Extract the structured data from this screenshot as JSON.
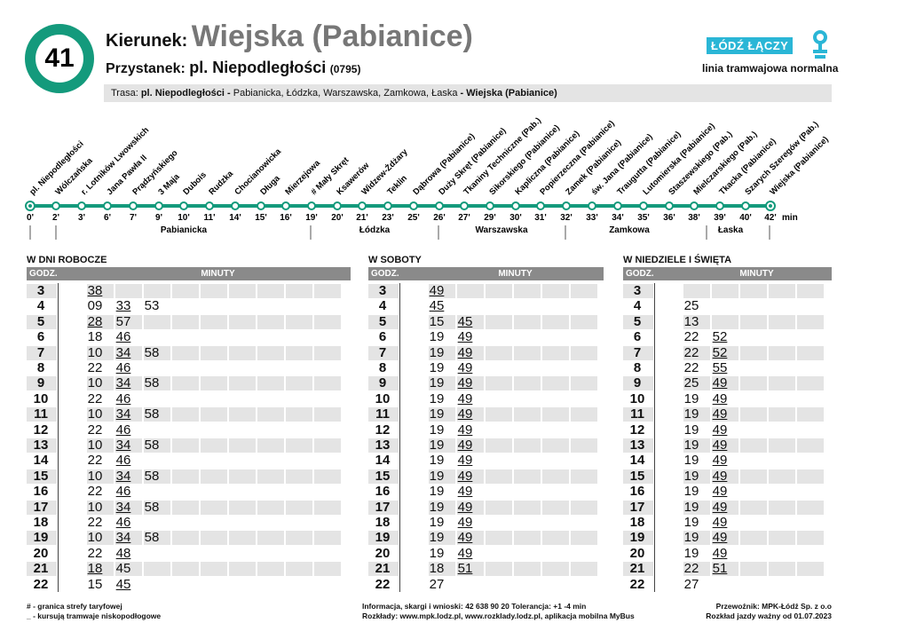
{
  "line_number": "41",
  "direction_label": "Kierunek:",
  "direction": "Wiejska (Pabianice)",
  "stop_label": "Przystanek:",
  "stop": "pl. Niepodległości",
  "stop_code": "(0795)",
  "brand": "ŁÓDŹ ŁĄCZY",
  "line_type": "linia tramwajowa normalna",
  "route_text": {
    "label": "Trasa:",
    "start": "pl. Niepodległości -",
    "middle": "Pabianicka, Łódzka, Warszawska, Zamkowa, Łaska",
    "end": "- Wiejska (Pabianice)"
  },
  "stops": [
    {
      "name": "pl. Niepodległości",
      "time": "0'"
    },
    {
      "name": "Wólczańska",
      "time": "2'"
    },
    {
      "name": "r. Lotników Lwowskich",
      "time": "3'"
    },
    {
      "name": "Jana Pawła II",
      "time": "6'"
    },
    {
      "name": "Prądzyńskiego",
      "time": "7'"
    },
    {
      "name": "3 Maja",
      "time": "9'"
    },
    {
      "name": "Dubois",
      "time": "10'"
    },
    {
      "name": "Rudzka",
      "time": "11'"
    },
    {
      "name": "Chocianowicka",
      "time": "14'"
    },
    {
      "name": "Długa",
      "time": "15'"
    },
    {
      "name": "Mierzejowa",
      "time": "16'"
    },
    {
      "name": "# Mały Skręt",
      "time": "19'"
    },
    {
      "name": "Ksawerów",
      "time": "20'"
    },
    {
      "name": "Widzew-Żdżary",
      "time": "21'"
    },
    {
      "name": "Teklin",
      "time": "23'"
    },
    {
      "name": "Dąbrowa (Pabianice)",
      "time": "25'"
    },
    {
      "name": "Duży Skręt (Pabianice)",
      "time": "26'"
    },
    {
      "name": "Tkaniny Techniczne (Pab.)",
      "time": "27'"
    },
    {
      "name": "Sikorskiego (Pabianice)",
      "time": "29'"
    },
    {
      "name": "Kapliczna (Pabianice)",
      "time": "30'"
    },
    {
      "name": "Popierzeczna (Pabianice)",
      "time": "31'"
    },
    {
      "name": "Zamek (Pabianice)",
      "time": "32'"
    },
    {
      "name": "św. Jana (Pabianice)",
      "time": "33'"
    },
    {
      "name": "Traugutta (Pabianice)",
      "time": "34'"
    },
    {
      "name": "Lutomierska (Pabianice)",
      "time": "35'"
    },
    {
      "name": "Staszewskiego (Pab.)",
      "time": "36'"
    },
    {
      "name": "Mielczarskiego (Pab.)",
      "time": "38'"
    },
    {
      "name": "Tkacka (Pabianice)",
      "time": "39'"
    },
    {
      "name": "Szarych Szeregów (Pab.)",
      "time": "40'"
    },
    {
      "name": "Wiejska (Pabianice)",
      "time": "42'"
    }
  ],
  "min_label": "min",
  "street_labels": [
    "Pabianicka",
    "Łódzka",
    "Warszawska",
    "Zamkowa",
    "Łaska"
  ],
  "tables": [
    {
      "title": "W DNI ROBOCZE",
      "godz": "GODZ.",
      "minuty": "MINUTY",
      "rows": [
        {
          "h": "3",
          "m": [
            {
              "v": "38",
              "u": true
            }
          ]
        },
        {
          "h": "4",
          "m": [
            {
              "v": "09",
              "u": false
            },
            {
              "v": "33",
              "u": true
            },
            {
              "v": "53",
              "u": false
            }
          ]
        },
        {
          "h": "5",
          "m": [
            {
              "v": "28",
              "u": true
            },
            {
              "v": "57",
              "u": false
            }
          ]
        },
        {
          "h": "6",
          "m": [
            {
              "v": "18",
              "u": false
            },
            {
              "v": "46",
              "u": true
            }
          ]
        },
        {
          "h": "7",
          "m": [
            {
              "v": "10",
              "u": false
            },
            {
              "v": "34",
              "u": true
            },
            {
              "v": "58",
              "u": false
            }
          ]
        },
        {
          "h": "8",
          "m": [
            {
              "v": "22",
              "u": false
            },
            {
              "v": "46",
              "u": true
            }
          ]
        },
        {
          "h": "9",
          "m": [
            {
              "v": "10",
              "u": false
            },
            {
              "v": "34",
              "u": true
            },
            {
              "v": "58",
              "u": false
            }
          ]
        },
        {
          "h": "10",
          "m": [
            {
              "v": "22",
              "u": false
            },
            {
              "v": "46",
              "u": true
            }
          ]
        },
        {
          "h": "11",
          "m": [
            {
              "v": "10",
              "u": false
            },
            {
              "v": "34",
              "u": true
            },
            {
              "v": "58",
              "u": false
            }
          ]
        },
        {
          "h": "12",
          "m": [
            {
              "v": "22",
              "u": false
            },
            {
              "v": "46",
              "u": true
            }
          ]
        },
        {
          "h": "13",
          "m": [
            {
              "v": "10",
              "u": false
            },
            {
              "v": "34",
              "u": true
            },
            {
              "v": "58",
              "u": false
            }
          ]
        },
        {
          "h": "14",
          "m": [
            {
              "v": "22",
              "u": false
            },
            {
              "v": "46",
              "u": true
            }
          ]
        },
        {
          "h": "15",
          "m": [
            {
              "v": "10",
              "u": false
            },
            {
              "v": "34",
              "u": true
            },
            {
              "v": "58",
              "u": false
            }
          ]
        },
        {
          "h": "16",
          "m": [
            {
              "v": "22",
              "u": false
            },
            {
              "v": "46",
              "u": true
            }
          ]
        },
        {
          "h": "17",
          "m": [
            {
              "v": "10",
              "u": false
            },
            {
              "v": "34",
              "u": true
            },
            {
              "v": "58",
              "u": false
            }
          ]
        },
        {
          "h": "18",
          "m": [
            {
              "v": "22",
              "u": false
            },
            {
              "v": "46",
              "u": true
            }
          ]
        },
        {
          "h": "19",
          "m": [
            {
              "v": "10",
              "u": false
            },
            {
              "v": "34",
              "u": true
            },
            {
              "v": "58",
              "u": false
            }
          ]
        },
        {
          "h": "20",
          "m": [
            {
              "v": "22",
              "u": false
            },
            {
              "v": "48",
              "u": true
            }
          ]
        },
        {
          "h": "21",
          "m": [
            {
              "v": "18",
              "u": true
            },
            {
              "v": "45",
              "u": false
            }
          ]
        },
        {
          "h": "22",
          "m": [
            {
              "v": "15",
              "u": false
            },
            {
              "v": "45",
              "u": true
            }
          ]
        }
      ]
    },
    {
      "title": "W SOBOTY",
      "godz": "GODZ.",
      "minuty": "MINUTY",
      "rows": [
        {
          "h": "3",
          "m": [
            {
              "v": "49",
              "u": true
            }
          ]
        },
        {
          "h": "4",
          "m": [
            {
              "v": "45",
              "u": true
            }
          ]
        },
        {
          "h": "5",
          "m": [
            {
              "v": "15",
              "u": false
            },
            {
              "v": "45",
              "u": true
            }
          ]
        },
        {
          "h": "6",
          "m": [
            {
              "v": "19",
              "u": false
            },
            {
              "v": "49",
              "u": true
            }
          ]
        },
        {
          "h": "7",
          "m": [
            {
              "v": "19",
              "u": false
            },
            {
              "v": "49",
              "u": true
            }
          ]
        },
        {
          "h": "8",
          "m": [
            {
              "v": "19",
              "u": false
            },
            {
              "v": "49",
              "u": true
            }
          ]
        },
        {
          "h": "9",
          "m": [
            {
              "v": "19",
              "u": false
            },
            {
              "v": "49",
              "u": true
            }
          ]
        },
        {
          "h": "10",
          "m": [
            {
              "v": "19",
              "u": false
            },
            {
              "v": "49",
              "u": true
            }
          ]
        },
        {
          "h": "11",
          "m": [
            {
              "v": "19",
              "u": false
            },
            {
              "v": "49",
              "u": true
            }
          ]
        },
        {
          "h": "12",
          "m": [
            {
              "v": "19",
              "u": false
            },
            {
              "v": "49",
              "u": true
            }
          ]
        },
        {
          "h": "13",
          "m": [
            {
              "v": "19",
              "u": false
            },
            {
              "v": "49",
              "u": true
            }
          ]
        },
        {
          "h": "14",
          "m": [
            {
              "v": "19",
              "u": false
            },
            {
              "v": "49",
              "u": true
            }
          ]
        },
        {
          "h": "15",
          "m": [
            {
              "v": "19",
              "u": false
            },
            {
              "v": "49",
              "u": true
            }
          ]
        },
        {
          "h": "16",
          "m": [
            {
              "v": "19",
              "u": false
            },
            {
              "v": "49",
              "u": true
            }
          ]
        },
        {
          "h": "17",
          "m": [
            {
              "v": "19",
              "u": false
            },
            {
              "v": "49",
              "u": true
            }
          ]
        },
        {
          "h": "18",
          "m": [
            {
              "v": "19",
              "u": false
            },
            {
              "v": "49",
              "u": true
            }
          ]
        },
        {
          "h": "19",
          "m": [
            {
              "v": "19",
              "u": false
            },
            {
              "v": "49",
              "u": true
            }
          ]
        },
        {
          "h": "20",
          "m": [
            {
              "v": "19",
              "u": false
            },
            {
              "v": "49",
              "u": true
            }
          ]
        },
        {
          "h": "21",
          "m": [
            {
              "v": "18",
              "u": false
            },
            {
              "v": "51",
              "u": true
            }
          ]
        },
        {
          "h": "22",
          "m": [
            {
              "v": "27",
              "u": false
            }
          ]
        }
      ]
    },
    {
      "title": "W NIEDZIELE I ŚWIĘTA",
      "godz": "GODZ.",
      "minuty": "MINUTY",
      "rows": [
        {
          "h": "3",
          "m": []
        },
        {
          "h": "4",
          "m": [
            {
              "v": "25",
              "u": false
            }
          ]
        },
        {
          "h": "5",
          "m": [
            {
              "v": "13",
              "u": false
            }
          ]
        },
        {
          "h": "6",
          "m": [
            {
              "v": "22",
              "u": false
            },
            {
              "v": "52",
              "u": true
            }
          ]
        },
        {
          "h": "7",
          "m": [
            {
              "v": "22",
              "u": false
            },
            {
              "v": "52",
              "u": true
            }
          ]
        },
        {
          "h": "8",
          "m": [
            {
              "v": "22",
              "u": false
            },
            {
              "v": "55",
              "u": true
            }
          ]
        },
        {
          "h": "9",
          "m": [
            {
              "v": "25",
              "u": false
            },
            {
              "v": "49",
              "u": true
            }
          ]
        },
        {
          "h": "10",
          "m": [
            {
              "v": "19",
              "u": false
            },
            {
              "v": "49",
              "u": true
            }
          ]
        },
        {
          "h": "11",
          "m": [
            {
              "v": "19",
              "u": false
            },
            {
              "v": "49",
              "u": true
            }
          ]
        },
        {
          "h": "12",
          "m": [
            {
              "v": "19",
              "u": false
            },
            {
              "v": "49",
              "u": true
            }
          ]
        },
        {
          "h": "13",
          "m": [
            {
              "v": "19",
              "u": false
            },
            {
              "v": "49",
              "u": true
            }
          ]
        },
        {
          "h": "14",
          "m": [
            {
              "v": "19",
              "u": false
            },
            {
              "v": "49",
              "u": true
            }
          ]
        },
        {
          "h": "15",
          "m": [
            {
              "v": "19",
              "u": false
            },
            {
              "v": "49",
              "u": true
            }
          ]
        },
        {
          "h": "16",
          "m": [
            {
              "v": "19",
              "u": false
            },
            {
              "v": "49",
              "u": true
            }
          ]
        },
        {
          "h": "17",
          "m": [
            {
              "v": "19",
              "u": false
            },
            {
              "v": "49",
              "u": true
            }
          ]
        },
        {
          "h": "18",
          "m": [
            {
              "v": "19",
              "u": false
            },
            {
              "v": "49",
              "u": true
            }
          ]
        },
        {
          "h": "19",
          "m": [
            {
              "v": "19",
              "u": false
            },
            {
              "v": "49",
              "u": true
            }
          ]
        },
        {
          "h": "20",
          "m": [
            {
              "v": "19",
              "u": false
            },
            {
              "v": "49",
              "u": true
            }
          ]
        },
        {
          "h": "21",
          "m": [
            {
              "v": "22",
              "u": false
            },
            {
              "v": "51",
              "u": true
            }
          ]
        },
        {
          "h": "22",
          "m": [
            {
              "v": "27",
              "u": false
            }
          ]
        }
      ]
    }
  ],
  "footer": {
    "legend1": "# - granica strefy taryfowej",
    "legend2": "_ - kursują tramwaje niskopodłogowe",
    "info1": "Informacja, skargi i wnioski: 42 638 90 20 Tolerancja: +1 -4 min",
    "info2": "Rozkłady: www.mpk.lodz.pl, www.rozklady.lodz.pl, aplikacja mobilna MyBus",
    "carrier": "Przewoźnik: MPK-Łódź Sp. z o.o",
    "valid": "Rozkład jazdy ważny od 01.07.2023"
  },
  "colors": {
    "accent": "#149a7c",
    "brand": "#2ab6d6",
    "row_shade": "#e4e4e4",
    "header": "#8a8a8a"
  }
}
